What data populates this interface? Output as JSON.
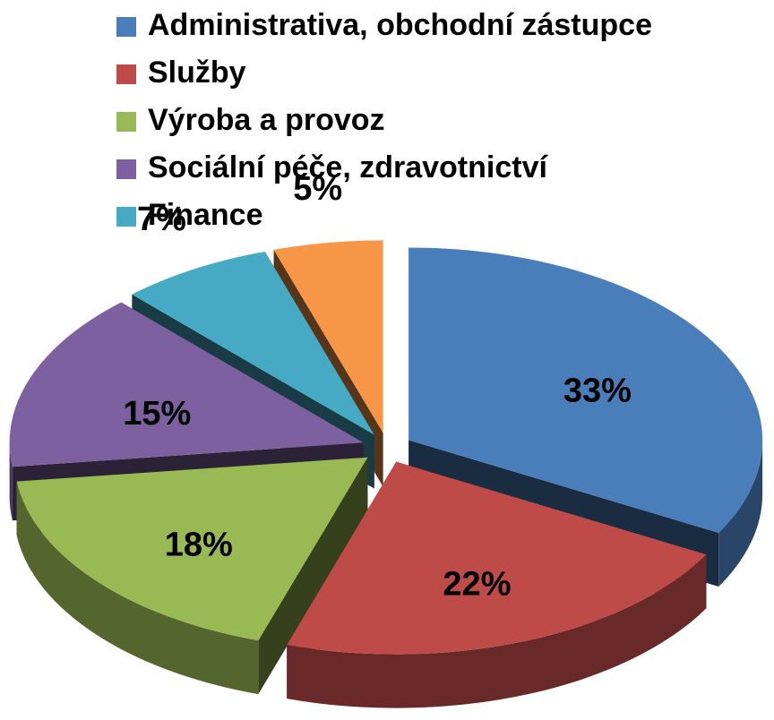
{
  "chart_data": {
    "type": "pie",
    "categories": [
      "Administrativa, obchodní zástupce",
      "Služby",
      "Výroba a provoz",
      "Sociální péče, zdravotnictví",
      "Finance",
      null
    ],
    "values": [
      33,
      22,
      18,
      15,
      7,
      5
    ],
    "value_labels": [
      "33%",
      "22%",
      "18%",
      "15%",
      "7%",
      "5%"
    ],
    "colors": [
      "#4a7ebb",
      "#be4b48",
      "#98b954",
      "#7d60a0",
      "#46aac5",
      "#f79646"
    ],
    "legend": "top"
  }
}
